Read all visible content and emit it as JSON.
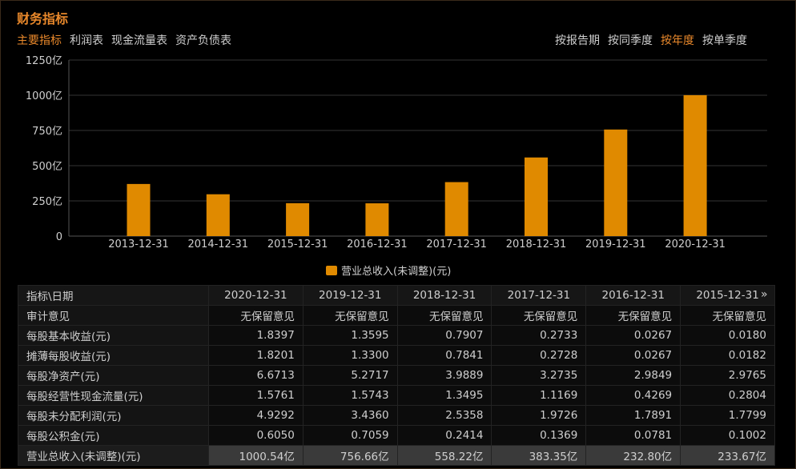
{
  "title": "财务指标",
  "tabs": [
    "主要指标",
    "利润表",
    "现金流量表",
    "资产负债表"
  ],
  "period_tabs": [
    "按报告期",
    "按同季度",
    "按年度",
    "按单季度"
  ],
  "accent": "#e8882b",
  "bar_color": "#e08a00",
  "chart_data": {
    "type": "bar",
    "categories": [
      "2013-12-31",
      "2014-12-31",
      "2015-12-31",
      "2016-12-31",
      "2017-12-31",
      "2018-12-31",
      "2019-12-31",
      "2020-12-31"
    ],
    "series": [
      {
        "name": "营业总收入(未调整)(元)",
        "values": [
          370,
          297,
          233.67,
          232.8,
          383.35,
          558.22,
          756.66,
          1000.54
        ]
      }
    ],
    "ylim": [
      0,
      1250
    ],
    "yticks": [
      0,
      250,
      500,
      750,
      1000,
      1250
    ],
    "ytick_labels": [
      "0",
      "250亿",
      "500亿",
      "750亿",
      "1000亿",
      "1250亿"
    ],
    "grid": true,
    "legend": "bottom"
  },
  "table": {
    "header": [
      "指标\\日期",
      "2020-12-31",
      "2019-12-31",
      "2018-12-31",
      "2017-12-31",
      "2016-12-31",
      "2015-12-31"
    ],
    "more": "»",
    "rows": [
      [
        "审计意见",
        "无保留意见",
        "无保留意见",
        "无保留意见",
        "无保留意见",
        "无保留意见",
        "无保留意见"
      ],
      [
        "每股基本收益(元)",
        "1.8397",
        "1.3595",
        "0.7907",
        "0.2733",
        "0.0267",
        "0.0180"
      ],
      [
        "摊薄每股收益(元)",
        "1.8201",
        "1.3300",
        "0.7841",
        "0.2728",
        "0.0267",
        "0.0182"
      ],
      [
        "每股净资产(元)",
        "6.6713",
        "5.2717",
        "3.9889",
        "3.2735",
        "2.9849",
        "2.9765"
      ],
      [
        "每股经营性现金流量(元)",
        "1.5761",
        "1.5743",
        "1.3495",
        "1.1169",
        "0.4269",
        "0.2804"
      ],
      [
        "每股未分配利润(元)",
        "4.9292",
        "3.4360",
        "2.5358",
        "1.9726",
        "1.7891",
        "1.7799"
      ],
      [
        "每股公积金(元)",
        "0.6050",
        "0.7059",
        "0.2414",
        "0.1369",
        "0.0781",
        "0.1002"
      ],
      [
        "营业总收入(未调整)(元)",
        "1000.54亿",
        "756.66亿",
        "558.22亿",
        "383.35亿",
        "232.80亿",
        "233.67亿"
      ]
    ]
  }
}
